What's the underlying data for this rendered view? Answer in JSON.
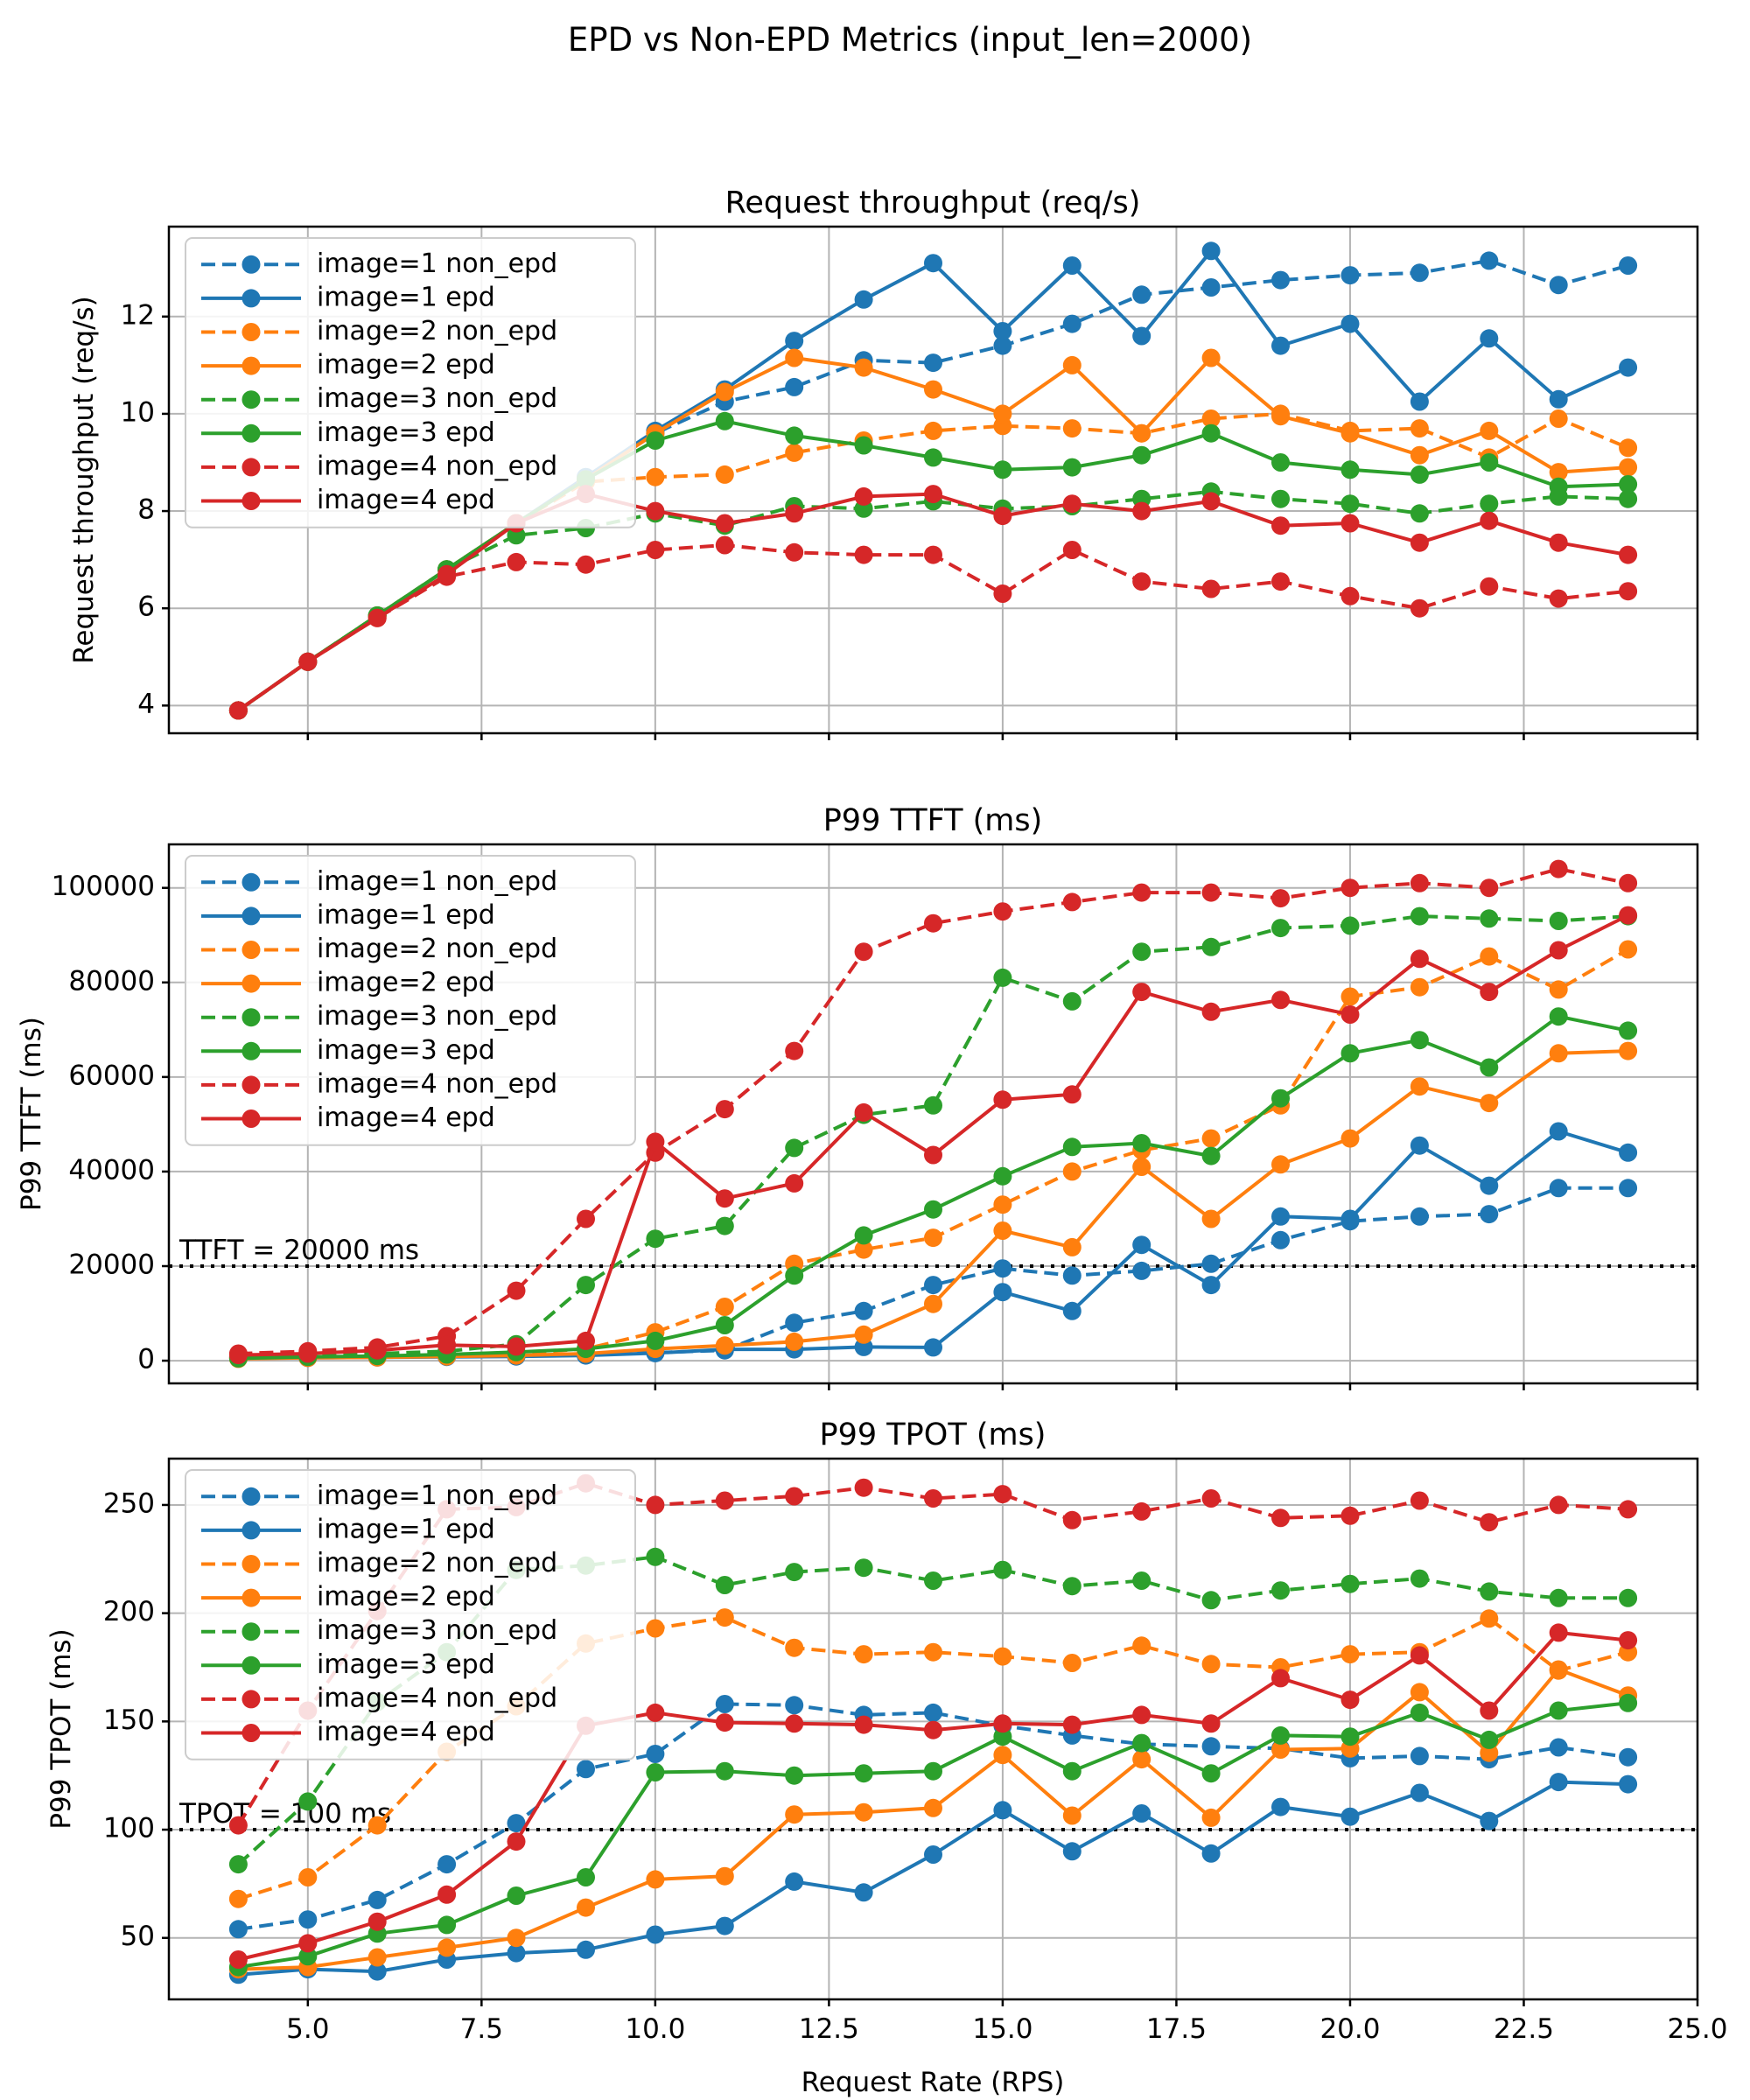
{
  "suptitle": "EPD vs Non-EPD Metrics (input_len=2000)",
  "xlabel": "Request Rate (RPS)",
  "colors": {
    "blue": "#1f77b4",
    "orange": "#ff7f0e",
    "green": "#2ca02c",
    "red": "#d62728",
    "grid": "#b4b4b4",
    "spine": "#000000",
    "legend_edge": "#cccccc",
    "annotation": "#000000"
  },
  "series_styles": [
    {
      "name": "image=1 non_epd",
      "color": "#1f77b4",
      "dashed": true
    },
    {
      "name": "image=1 epd",
      "color": "#1f77b4",
      "dashed": false
    },
    {
      "name": "image=2 non_epd",
      "color": "#ff7f0e",
      "dashed": true
    },
    {
      "name": "image=2 epd",
      "color": "#ff7f0e",
      "dashed": false
    },
    {
      "name": "image=3 non_epd",
      "color": "#2ca02c",
      "dashed": true
    },
    {
      "name": "image=3 epd",
      "color": "#2ca02c",
      "dashed": false
    },
    {
      "name": "image=4 non_epd",
      "color": "#d62728",
      "dashed": true
    },
    {
      "name": "image=4 epd",
      "color": "#d62728",
      "dashed": false
    }
  ],
  "x": [
    4,
    5,
    6,
    7,
    8,
    9,
    10,
    11,
    12,
    13,
    14,
    15,
    16,
    17,
    18,
    19,
    20,
    21,
    22,
    23,
    24
  ],
  "xlim": [
    3,
    25
  ],
  "xticks": [
    5,
    7.5,
    10,
    12.5,
    15,
    17.5,
    20,
    22.5,
    25
  ],
  "xtick_labels": [
    "5.0",
    "7.5",
    "10.0",
    "12.5",
    "15.0",
    "17.5",
    "20.0",
    "22.5",
    "25.0"
  ],
  "chart_data": [
    {
      "type": "line",
      "title": "Request throughput (req/s)",
      "ylabel": "Request throughput (req/s)",
      "ylim": [
        3.43,
        13.85
      ],
      "yticks": [
        4,
        6,
        8,
        10,
        12
      ],
      "ytick_labels": [
        "4",
        "6",
        "8",
        "10",
        "12"
      ],
      "grid": true,
      "legend": "upper left",
      "annotation": null,
      "series": [
        {
          "name": "image=1 non_epd",
          "values": [
            3.9,
            4.9,
            5.85,
            6.8,
            7.75,
            8.65,
            9.6,
            10.25,
            10.55,
            11.1,
            11.05,
            11.4,
            11.85,
            12.45,
            12.6,
            12.75,
            12.85,
            12.9,
            13.15,
            12.65,
            13.05
          ]
        },
        {
          "name": "image=1 epd",
          "values": [
            3.9,
            4.9,
            5.85,
            6.8,
            7.75,
            8.7,
            9.65,
            10.5,
            11.5,
            12.35,
            13.1,
            11.7,
            13.05,
            11.6,
            13.35,
            11.4,
            11.85,
            10.25,
            11.55,
            10.3,
            10.95
          ]
        },
        {
          "name": "image=2 non_epd",
          "values": [
            3.9,
            4.9,
            5.85,
            6.8,
            7.75,
            8.6,
            8.7,
            8.75,
            9.2,
            9.45,
            9.65,
            9.75,
            9.7,
            9.6,
            9.9,
            10.0,
            9.65,
            9.7,
            9.1,
            9.9,
            9.3
          ]
        },
        {
          "name": "image=2 epd",
          "values": [
            3.9,
            4.9,
            5.85,
            6.8,
            7.75,
            8.65,
            9.6,
            10.45,
            11.15,
            10.95,
            10.5,
            10.0,
            11.0,
            9.6,
            11.15,
            9.95,
            9.6,
            9.15,
            9.65,
            8.8,
            8.9
          ]
        },
        {
          "name": "image=3 non_epd",
          "values": [
            3.9,
            4.9,
            5.85,
            6.8,
            7.5,
            7.65,
            7.95,
            7.7,
            8.1,
            8.05,
            8.2,
            8.05,
            8.1,
            8.25,
            8.4,
            8.25,
            8.15,
            7.95,
            8.15,
            8.3,
            8.25
          ]
        },
        {
          "name": "image=3 epd",
          "values": [
            3.9,
            4.9,
            5.85,
            6.8,
            7.75,
            8.65,
            9.45,
            9.85,
            9.55,
            9.35,
            9.1,
            8.85,
            8.9,
            9.15,
            9.6,
            9.0,
            8.85,
            8.75,
            9.0,
            8.5,
            8.55
          ]
        },
        {
          "name": "image=4 non_epd",
          "values": [
            3.9,
            4.9,
            5.8,
            6.65,
            6.95,
            6.9,
            7.2,
            7.3,
            7.15,
            7.1,
            7.1,
            6.3,
            7.2,
            6.55,
            6.4,
            6.55,
            6.25,
            6.0,
            6.45,
            6.2,
            6.35
          ]
        },
        {
          "name": "image=4 epd",
          "values": [
            3.9,
            4.9,
            5.8,
            6.7,
            7.75,
            8.35,
            8.0,
            7.75,
            7.95,
            8.3,
            8.35,
            7.9,
            8.15,
            8.0,
            8.2,
            7.7,
            7.75,
            7.35,
            7.8,
            7.35,
            7.1
          ]
        }
      ]
    },
    {
      "type": "line",
      "title": "P99 TTFT (ms)",
      "ylabel": "P99 TTFT (ms)",
      "ylim": [
        -4800,
        109200
      ],
      "yticks": [
        0,
        20000,
        40000,
        60000,
        80000,
        100000
      ],
      "ytick_labels": [
        "0",
        "20000",
        "40000",
        "60000",
        "80000",
        "100000"
      ],
      "grid": true,
      "legend": "upper left",
      "annotation": {
        "y": 20000,
        "label": "TTFT = 20000 ms"
      },
      "series": [
        {
          "name": "image=1 non_epd",
          "values": [
            700,
            800,
            900,
            1000,
            1100,
            1300,
            1700,
            2200,
            8000,
            10500,
            16000,
            19500,
            18000,
            19000,
            20500,
            25500,
            29500,
            30500,
            31000,
            36500,
            36500
          ]
        },
        {
          "name": "image=1 epd",
          "values": [
            500,
            600,
            700,
            800,
            900,
            1100,
            1600,
            2400,
            2400,
            2900,
            2800,
            14500,
            10500,
            24500,
            16000,
            30500,
            30000,
            45500,
            37000,
            48500,
            44000
          ]
        },
        {
          "name": "image=2 non_epd",
          "values": [
            700,
            900,
            1000,
            1200,
            1500,
            2500,
            6000,
            11400,
            20500,
            23500,
            26000,
            33000,
            40000,
            44500,
            47000,
            54000,
            77000,
            79000,
            85500,
            78500,
            87000
          ]
        },
        {
          "name": "image=2 epd",
          "values": [
            400,
            600,
            700,
            900,
            1100,
            1500,
            2500,
            3200,
            4000,
            5500,
            12000,
            27500,
            24000,
            41000,
            30000,
            41500,
            47000,
            58000,
            54500,
            65000,
            65500
          ]
        },
        {
          "name": "image=3 non_epd",
          "values": [
            800,
            1200,
            1500,
            2000,
            3500,
            16000,
            25800,
            28500,
            45000,
            52000,
            54000,
            81000,
            76000,
            86500,
            87500,
            91500,
            92000,
            94000,
            93500,
            93000,
            94000
          ]
        },
        {
          "name": "image=3 epd",
          "values": [
            500,
            800,
            1000,
            1300,
            1800,
            2500,
            4200,
            7500,
            18000,
            26500,
            32000,
            39000,
            45200,
            46000,
            43300,
            55500,
            65000,
            67800,
            62000,
            72800,
            69800
          ]
        },
        {
          "name": "image=4 non_epd",
          "values": [
            1500,
            2000,
            2800,
            5200,
            14800,
            30000,
            44000,
            53200,
            65500,
            86500,
            92500,
            95000,
            97000,
            99000,
            99000,
            97800,
            100000,
            101000,
            100000,
            104000,
            101000
          ]
        },
        {
          "name": "image=4 epd",
          "values": [
            1200,
            1500,
            2200,
            3300,
            3000,
            4200,
            46300,
            34300,
            37500,
            52500,
            43500,
            55200,
            56300,
            78000,
            73800,
            76300,
            73200,
            85000,
            78000,
            86800,
            94200
          ]
        }
      ]
    },
    {
      "type": "line",
      "title": "P99 TPOT (ms)",
      "ylabel": "P99 TPOT (ms)",
      "ylim": [
        21.6,
        271.4
      ],
      "yticks": [
        50,
        100,
        150,
        200,
        250
      ],
      "ytick_labels": [
        "50",
        "100",
        "150",
        "200",
        "250"
      ],
      "grid": true,
      "legend": "upper left",
      "annotation": {
        "y": 100,
        "label": "TPOT = 100 ms"
      },
      "series": [
        {
          "name": "image=1 non_epd",
          "values": [
            54,
            58.5,
            67.5,
            84,
            103,
            128,
            135,
            158,
            157.5,
            153,
            154,
            148,
            143.5,
            139.5,
            138.5,
            137.5,
            133,
            134,
            132.5,
            138,
            133.5
          ]
        },
        {
          "name": "image=1 epd",
          "values": [
            33,
            35.5,
            34.5,
            40,
            43,
            44.5,
            51.5,
            55.5,
            76,
            71,
            88.5,
            109,
            90,
            107.5,
            89,
            110.5,
            106,
            117,
            104,
            122,
            121
          ]
        },
        {
          "name": "image=2 non_epd",
          "values": [
            68,
            78,
            102,
            136,
            157,
            186,
            193,
            198,
            184,
            181,
            182,
            180,
            177,
            185,
            176.5,
            175,
            181,
            182,
            197.5,
            173.5,
            182
          ]
        },
        {
          "name": "image=2 epd",
          "values": [
            35.5,
            36.5,
            41,
            45.5,
            50,
            64,
            77,
            78.5,
            107,
            108,
            110,
            134.5,
            106.5,
            132.5,
            105.5,
            137,
            137.5,
            163.5,
            135.5,
            174,
            162
          ]
        },
        {
          "name": "image=3 non_epd",
          "values": [
            84,
            113,
            159,
            182,
            220,
            222,
            226,
            213,
            219,
            221,
            215,
            220,
            212.5,
            215,
            206,
            210.5,
            213.5,
            216,
            210,
            207,
            207
          ]
        },
        {
          "name": "image=3 epd",
          "values": [
            36.5,
            41.5,
            52,
            56,
            69.5,
            78,
            126.5,
            127,
            125,
            126,
            127,
            143,
            127,
            140,
            126,
            143.5,
            143,
            154,
            141.5,
            155,
            158.5
          ]
        },
        {
          "name": "image=4 non_epd",
          "values": [
            102,
            155,
            201,
            248,
            249,
            260,
            250,
            252,
            254,
            258,
            253,
            255,
            243,
            247,
            253,
            244,
            245,
            252,
            242,
            250,
            248
          ]
        },
        {
          "name": "image=4 epd",
          "values": [
            40,
            47.5,
            57.5,
            70,
            94.5,
            148,
            154,
            149.5,
            149,
            148.5,
            146,
            149,
            148.5,
            153,
            149,
            170,
            160,
            180.5,
            155,
            191,
            187.5
          ]
        }
      ]
    }
  ]
}
